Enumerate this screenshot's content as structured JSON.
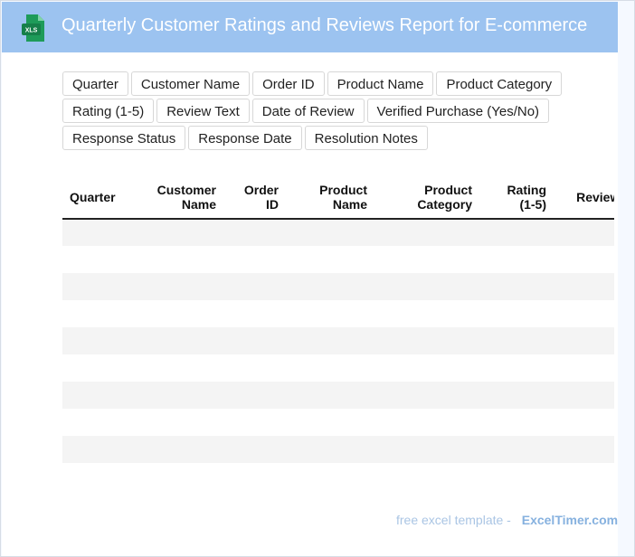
{
  "header": {
    "title": "Quarterly Customer Ratings and Reviews Report for E-commerce",
    "icon_label": "XLS",
    "color": "#9cc3f0"
  },
  "chips": [
    [
      "Quarter",
      "Customer Name",
      "Order ID",
      "Product Name",
      "Product Category"
    ],
    [
      "Rating (1-5)",
      "Review Text",
      "Date of Review",
      "Verified Purchase (Yes/No)"
    ],
    [
      "Response Status",
      "Response Date",
      "Resolution Notes"
    ]
  ],
  "table": {
    "headers": [
      "Quarter",
      "Customer Name",
      "Order ID",
      "Product Name",
      "Product Category",
      "Rating (1-5)",
      "Review Text"
    ],
    "rows": [
      [
        "",
        "",
        "",
        "",
        "",
        "",
        ""
      ],
      [
        "",
        "",
        "",
        "",
        "",
        "",
        ""
      ],
      [
        "",
        "",
        "",
        "",
        "",
        "",
        ""
      ],
      [
        "",
        "",
        "",
        "",
        "",
        "",
        ""
      ],
      [
        "",
        "",
        "",
        "",
        "",
        "",
        ""
      ],
      [
        "",
        "",
        "",
        "",
        "",
        "",
        ""
      ],
      [
        "",
        "",
        "",
        "",
        "",
        "",
        ""
      ],
      [
        "",
        "",
        "",
        "",
        "",
        "",
        ""
      ],
      [
        "",
        "",
        "",
        "",
        "",
        "",
        ""
      ],
      [
        "",
        "",
        "",
        "",
        "",
        "",
        ""
      ]
    ]
  },
  "footer": {
    "note": "free excel template -",
    "brand": "ExcelTimer.com"
  }
}
